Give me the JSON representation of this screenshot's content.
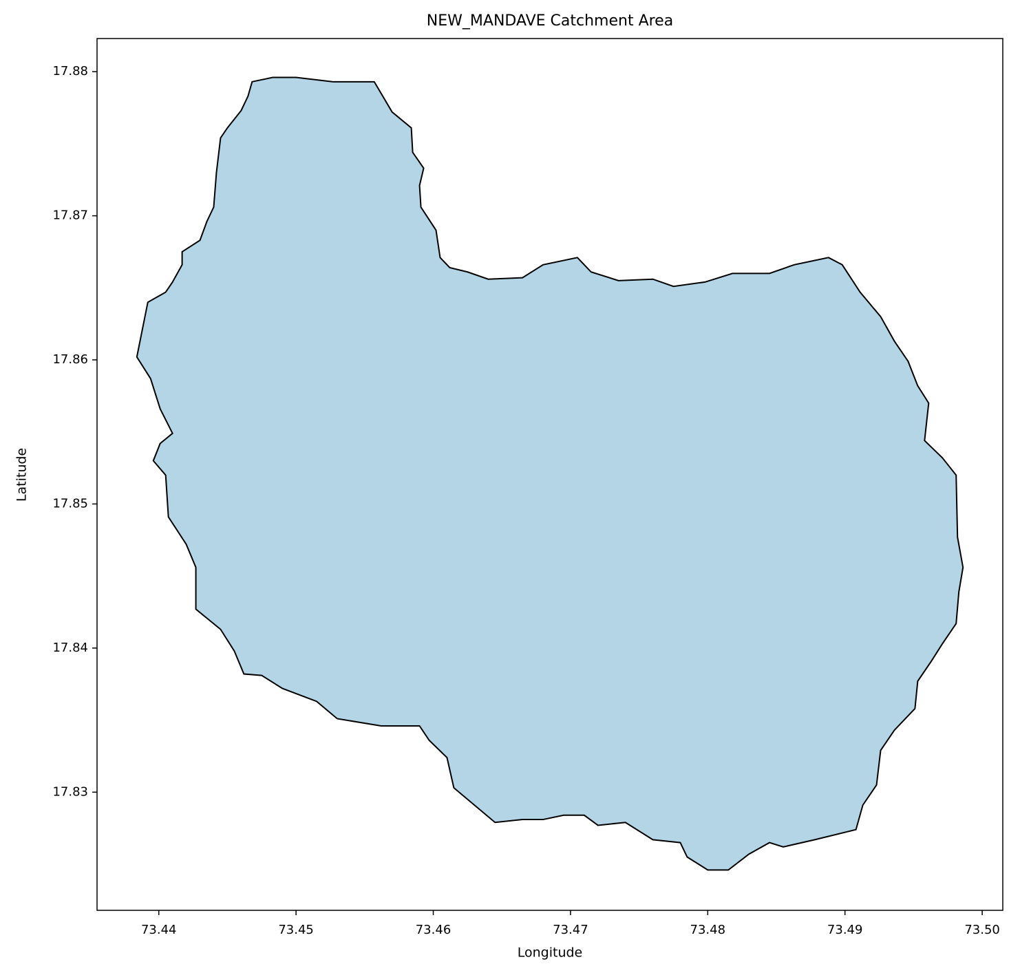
{
  "chart_data": {
    "type": "polygon",
    "title": "NEW_MANDAVE Catchment Area",
    "xlabel": "Longitude",
    "ylabel": "Latitude",
    "fill": "#b4d5e5",
    "edgecolor": "#000000",
    "xlim": [
      73.4355,
      73.5015
    ],
    "ylim": [
      17.8218,
      17.8823
    ],
    "xticks": [
      73.44,
      73.45,
      73.46,
      73.47,
      73.48,
      73.49,
      {
        "value": 73.5,
        "label": "73.50"
      }
    ],
    "yticks": [
      17.83,
      17.84,
      17.85,
      17.86,
      17.87,
      17.88
    ],
    "x": [
      73.4468,
      73.4483,
      73.45,
      73.4527,
      73.4557,
      73.457,
      73.4584,
      73.4585,
      73.4593,
      73.459,
      73.4591,
      73.4602,
      73.4605,
      73.4612,
      73.4625,
      73.464,
      73.4665,
      73.468,
      73.4705,
      73.4715,
      73.4735,
      73.476,
      73.4775,
      73.4798,
      73.4818,
      73.4845,
      73.4863,
      73.4888,
      73.4898,
      73.4911,
      73.4926,
      73.4936,
      73.4946,
      73.4953,
      73.4961,
      73.4958,
      73.4971,
      73.4981,
      73.4982,
      73.4986,
      73.4983,
      73.4981,
      73.4971,
      73.4963,
      73.4953,
      73.4951,
      73.4936,
      73.4926,
      73.4923,
      73.4913,
      73.4908,
      73.4878,
      73.4855,
      73.4845,
      73.483,
      73.4815,
      73.48,
      73.4785,
      73.478,
      73.476,
      73.474,
      73.472,
      73.471,
      73.4695,
      73.468,
      73.4665,
      73.4645,
      73.463,
      73.4615,
      73.461,
      73.4597,
      73.459,
      73.4562,
      73.453,
      73.4515,
      73.449,
      73.4475,
      73.4462,
      73.4455,
      73.4445,
      73.4427,
      73.4427,
      73.442,
      73.4407,
      73.4405,
      73.4396,
      73.4401,
      73.441,
      73.4401,
      73.4394,
      73.4384,
      73.4392,
      73.4405,
      73.441,
      73.4417,
      73.4417,
      73.443,
      73.4435,
      73.444,
      73.4442,
      73.4445,
      73.445,
      73.446,
      73.4465
    ],
    "y": [
      17.8793,
      17.8796,
      17.8796,
      17.8793,
      17.8793,
      17.8772,
      17.8761,
      17.8744,
      17.8733,
      17.8721,
      17.8706,
      17.869,
      17.8671,
      17.8664,
      17.8661,
      17.8656,
      17.8657,
      17.8666,
      17.8671,
      17.8661,
      17.8655,
      17.8656,
      17.8651,
      17.8654,
      17.866,
      17.866,
      17.8666,
      17.8671,
      17.8666,
      17.8647,
      17.863,
      17.8613,
      17.8599,
      17.8582,
      17.857,
      17.8544,
      17.8532,
      17.852,
      17.8477,
      17.8456,
      17.8439,
      17.8417,
      17.8403,
      17.8391,
      17.8377,
      17.8358,
      17.8343,
      17.8329,
      17.8305,
      17.8291,
      17.8274,
      17.8267,
      17.8262,
      17.8265,
      17.8257,
      17.8246,
      17.8246,
      17.8255,
      17.8265,
      17.8267,
      17.8279,
      17.8277,
      17.8284,
      17.8284,
      17.8281,
      17.8281,
      17.8279,
      17.8291,
      17.8303,
      17.8324,
      17.8336,
      17.8346,
      17.8346,
      17.8351,
      17.8363,
      17.8372,
      17.8381,
      17.8382,
      17.8398,
      17.8413,
      17.8427,
      17.8456,
      17.8472,
      17.8491,
      17.852,
      17.853,
      17.8542,
      17.8549,
      17.8566,
      17.8587,
      17.8602,
      17.864,
      17.8647,
      17.8654,
      17.8666,
      17.8675,
      17.8683,
      17.8696,
      17.8706,
      17.873,
      17.8754,
      17.8761,
      17.8773,
      17.8783
    ]
  }
}
